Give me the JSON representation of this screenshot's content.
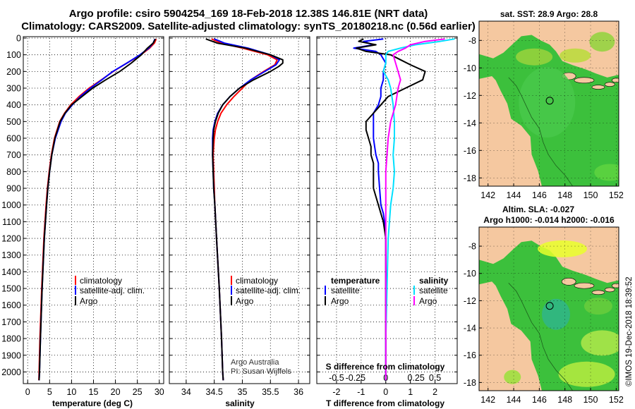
{
  "title": {
    "line1": "Argo profile: csiro 5904254_169 18-Feb-2018 12.38S 146.81E (NRT data)",
    "line2": "Climatology: CARS2009. Satellite-adjusted climatology: synTS_20180218.nc (0.56d earlier)"
  },
  "colors": {
    "climatology": "#ff0000",
    "satellite": "#0000ff",
    "argo": "#000000",
    "sal_satellite": "#00e0ff",
    "sal_argo": "#ff00ff",
    "land": "#f5c8a0",
    "sea": "#3cc03c"
  },
  "depth_ticks": [
    "0",
    "100",
    "200",
    "300",
    "400",
    "500",
    "600",
    "700",
    "800",
    "900",
    "1000",
    "1100",
    "1200",
    "1300",
    "1400",
    "1500",
    "1600",
    "1700",
    "1800",
    "1900",
    "2000"
  ],
  "chart_data": [
    {
      "type": "line",
      "name": "temperature-profile",
      "xlabel": "temperature (deg C)",
      "ylabel": "depth",
      "xlim": [
        -1,
        31
      ],
      "ylim": [
        2070,
        0
      ],
      "xticks": [
        "0",
        "5",
        "10",
        "15",
        "20",
        "25",
        "30"
      ],
      "xtick_values": [
        0,
        5,
        10,
        15,
        20,
        25,
        30
      ],
      "legend": [
        "climatology",
        "satellite-adj. clim.",
        "Argo"
      ],
      "series": [
        {
          "name": "climatology",
          "depth": [
            5,
            30,
            60,
            100,
            150,
            200,
            250,
            300,
            350,
            400,
            450,
            500,
            600,
            700,
            800,
            900,
            1000,
            1200,
            1500,
            1800,
            2000,
            2050
          ],
          "values": [
            29.3,
            28.9,
            27.8,
            25.8,
            22.6,
            19.5,
            16.8,
            14.0,
            11.7,
            9.8,
            8.4,
            7.3,
            6.1,
            5.4,
            4.9,
            4.5,
            4.2,
            3.7,
            3.2,
            2.8,
            2.6,
            2.55
          ]
        },
        {
          "name": "satellite-adj. clim.",
          "depth": [
            5,
            30,
            60,
            100,
            150,
            200,
            250,
            300,
            350,
            400,
            450,
            500,
            600,
            700,
            800,
            900,
            1000,
            1200,
            1500,
            1800,
            2000,
            2050
          ],
          "values": [
            29.0,
            28.6,
            27.6,
            25.6,
            22.6,
            19.4,
            16.9,
            14.3,
            12.0,
            10.2,
            8.6,
            7.6,
            6.3,
            5.5,
            5.0,
            4.6,
            4.3,
            3.8,
            3.3,
            2.9,
            2.7,
            2.6
          ]
        },
        {
          "name": "Argo",
          "depth": [
            5,
            30,
            60,
            100,
            150,
            200,
            250,
            300,
            350,
            400,
            450,
            500,
            600,
            700,
            800,
            900,
            1000,
            1200,
            1500,
            1800,
            2000,
            2050
          ],
          "values": [
            29.1,
            28.6,
            27.3,
            25.9,
            23.6,
            21.0,
            17.8,
            14.8,
            12.4,
            10.0,
            8.5,
            7.4,
            6.2,
            5.5,
            5.0,
            4.6,
            4.3,
            3.8,
            3.3,
            2.9,
            2.7,
            2.6
          ]
        }
      ]
    },
    {
      "type": "line",
      "name": "salinity-profile",
      "xlabel": "salinity",
      "ylabel": "depth",
      "xlim": [
        33.7,
        36.2
      ],
      "ylim": [
        2070,
        0
      ],
      "xticks": [
        "34",
        "34.5",
        "35",
        "35.5",
        "36"
      ],
      "xtick_values": [
        34,
        34.5,
        35,
        35.5,
        36
      ],
      "legend": [
        "climatology",
        "satellite-adj. clim.",
        "Argo"
      ],
      "annotation": [
        "Argo Australia",
        "PI: Susan Wijffels"
      ],
      "series": [
        {
          "name": "climatology",
          "depth": [
            5,
            30,
            60,
            100,
            130,
            160,
            200,
            250,
            300,
            350,
            400,
            450,
            500,
            550,
            600,
            700,
            800,
            900,
            1000,
            1200,
            1500,
            1800,
            2000,
            2050
          ],
          "values": [
            34.45,
            34.62,
            35.0,
            35.45,
            35.62,
            35.58,
            35.38,
            35.15,
            35.0,
            34.85,
            34.72,
            34.62,
            34.56,
            34.52,
            34.5,
            34.48,
            34.49,
            34.5,
            34.51,
            34.54,
            34.59,
            34.63,
            34.65,
            34.66
          ]
        },
        {
          "name": "satellite-adj. clim.",
          "depth": [
            5,
            30,
            60,
            100,
            130,
            160,
            200,
            250,
            300,
            350,
            400,
            450,
            500,
            550,
            600,
            700,
            800,
            900,
            1000,
            1200,
            1500,
            1800,
            2000,
            2050
          ],
          "values": [
            34.5,
            34.68,
            35.1,
            35.5,
            35.66,
            35.6,
            35.4,
            35.15,
            34.95,
            34.78,
            34.65,
            34.56,
            34.51,
            34.48,
            34.47,
            34.47,
            34.48,
            34.49,
            34.51,
            34.54,
            34.59,
            34.63,
            34.65,
            34.66
          ]
        },
        {
          "name": "Argo",
          "depth": [
            5,
            30,
            60,
            100,
            130,
            150,
            170,
            200,
            250,
            300,
            350,
            400,
            450,
            500,
            550,
            600,
            700,
            800,
            900,
            1000,
            1200,
            1500,
            1800,
            2000,
            2050
          ],
          "values": [
            34.35,
            34.55,
            35.05,
            35.5,
            35.72,
            35.72,
            35.65,
            35.5,
            35.2,
            34.95,
            34.78,
            34.65,
            34.57,
            34.52,
            34.49,
            34.48,
            34.47,
            34.48,
            34.49,
            34.51,
            34.54,
            34.59,
            34.63,
            34.65,
            34.66
          ]
        }
      ]
    },
    {
      "type": "line",
      "name": "difference-profile",
      "xlabel": "T difference from climatology",
      "xlabel_top": "S difference from climatology",
      "ylabel": "depth",
      "xlim": [
        -2.8,
        2.9
      ],
      "ylim": [
        2070,
        0
      ],
      "xticks": [
        "-2",
        "-1",
        "0",
        "1",
        "2"
      ],
      "xtick_values": [
        -2,
        -1,
        0,
        1,
        2
      ],
      "s_ticks": [
        "-0.5",
        "-0.25",
        "0",
        "0.25",
        "0.5"
      ],
      "legend_t_title": "temperature",
      "legend_s_title": "salinity",
      "legend_t": [
        "satellite",
        "Argo"
      ],
      "legend_s": [
        "satellite",
        "Argo"
      ],
      "series": [
        {
          "name": "temperature satellite",
          "depth": [
            5,
            20,
            40,
            60,
            80,
            100,
            150,
            200,
            250,
            300,
            350,
            400,
            450,
            500,
            550,
            600,
            650,
            700,
            750,
            800,
            900,
            1000,
            1050,
            1100,
            1200,
            1300,
            1500,
            1700,
            1900,
            2050
          ],
          "values": [
            -0.1,
            -0.9,
            -0.5,
            -1.3,
            -0.4,
            -0.2,
            0.0,
            -0.1,
            -0.1,
            -0.2,
            -0.2,
            -0.3,
            -0.5,
            -0.5,
            -0.5,
            -0.5,
            -0.45,
            -0.4,
            -0.3,
            -0.3,
            -0.25,
            -0.2,
            -0.1,
            -0.05,
            0.0,
            0.0,
            0.0,
            0.0,
            0.0,
            0.0
          ]
        },
        {
          "name": "temperature Argo",
          "depth": [
            5,
            20,
            40,
            60,
            80,
            100,
            130,
            160,
            200,
            250,
            300,
            350,
            400,
            450,
            500,
            550,
            600,
            650,
            700,
            750,
            800,
            850,
            900,
            950,
            1000,
            1050,
            1100,
            1200,
            1300,
            1500,
            1700,
            1900,
            2050
          ],
          "values": [
            -0.9,
            -1.1,
            -0.4,
            -1.2,
            -0.8,
            0.2,
            0.6,
            1.0,
            1.6,
            1.5,
            0.8,
            0.1,
            -0.2,
            -0.5,
            -0.8,
            -0.8,
            -0.7,
            -0.6,
            -0.6,
            -0.5,
            -0.5,
            -0.5,
            -0.5,
            -0.4,
            -0.3,
            -0.2,
            -0.1,
            0.0,
            0.0,
            0.0,
            0.0,
            0.0,
            0.0
          ]
        },
        {
          "name": "salinity satellite",
          "depth": [
            5,
            20,
            40,
            60,
            80,
            100,
            150,
            200,
            250,
            300,
            400,
            500,
            600,
            700,
            800,
            900,
            1000,
            1200,
            1500,
            1800,
            2050
          ],
          "values": [
            2.8,
            2.2,
            1.2,
            0.6,
            0.1,
            0.0,
            0.0,
            -0.1,
            0.1,
            0.2,
            0.3,
            0.35,
            0.35,
            0.3,
            0.35,
            0.3,
            0.2,
            0.1,
            0.05,
            0.0,
            0.0
          ]
        },
        {
          "name": "salinity Argo",
          "depth": [
            5,
            20,
            40,
            60,
            80,
            100,
            150,
            200,
            250,
            300,
            400,
            500,
            600,
            700,
            800,
            900,
            1000,
            1200,
            1500,
            1800,
            2050
          ],
          "values": [
            2.4,
            1.6,
            1.0,
            0.8,
            0.5,
            0.3,
            0.4,
            0.5,
            0.6,
            0.5,
            0.4,
            0.2,
            0.1,
            0.05,
            0.0,
            0.0,
            0.0,
            0.0,
            0.0,
            0.0,
            0.0
          ]
        }
      ]
    },
    {
      "type": "heatmap",
      "name": "sst-map",
      "title": "sat. SST: 28.9 Argo: 28.8",
      "xticks": [
        "142",
        "144",
        "146",
        "148",
        "150",
        "152"
      ],
      "xtick_values": [
        142,
        144,
        146,
        148,
        150,
        152
      ],
      "yticks": [
        "-8",
        "-10",
        "-12",
        "-14",
        "-16",
        "-18"
      ],
      "ytick_values": [
        -8,
        -10,
        -12,
        -14,
        -16,
        -18
      ],
      "xlim": [
        141.3,
        152.2
      ],
      "ylim": [
        -18.6,
        -6.6
      ],
      "float_position": [
        146.81,
        -12.38
      ]
    },
    {
      "type": "heatmap",
      "name": "sla-map",
      "title": "Altim. SLA: -0.027",
      "subtitle": "Argo h1000: -0.014 h2000: -0.016",
      "xticks": [
        "142",
        "144",
        "146",
        "148",
        "150",
        "152"
      ],
      "xtick_values": [
        142,
        144,
        146,
        148,
        150,
        152
      ],
      "yticks": [
        "-8",
        "-10",
        "-12",
        "-14",
        "-16",
        "-18"
      ],
      "ytick_values": [
        -8,
        -10,
        -12,
        -14,
        -16,
        -18
      ],
      "xlim": [
        141.3,
        152.2
      ],
      "ylim": [
        -18.6,
        -6.6
      ],
      "float_position": [
        146.81,
        -12.38
      ]
    }
  ],
  "credit": "©IMOS 19-Dec-2018 18:39:52"
}
